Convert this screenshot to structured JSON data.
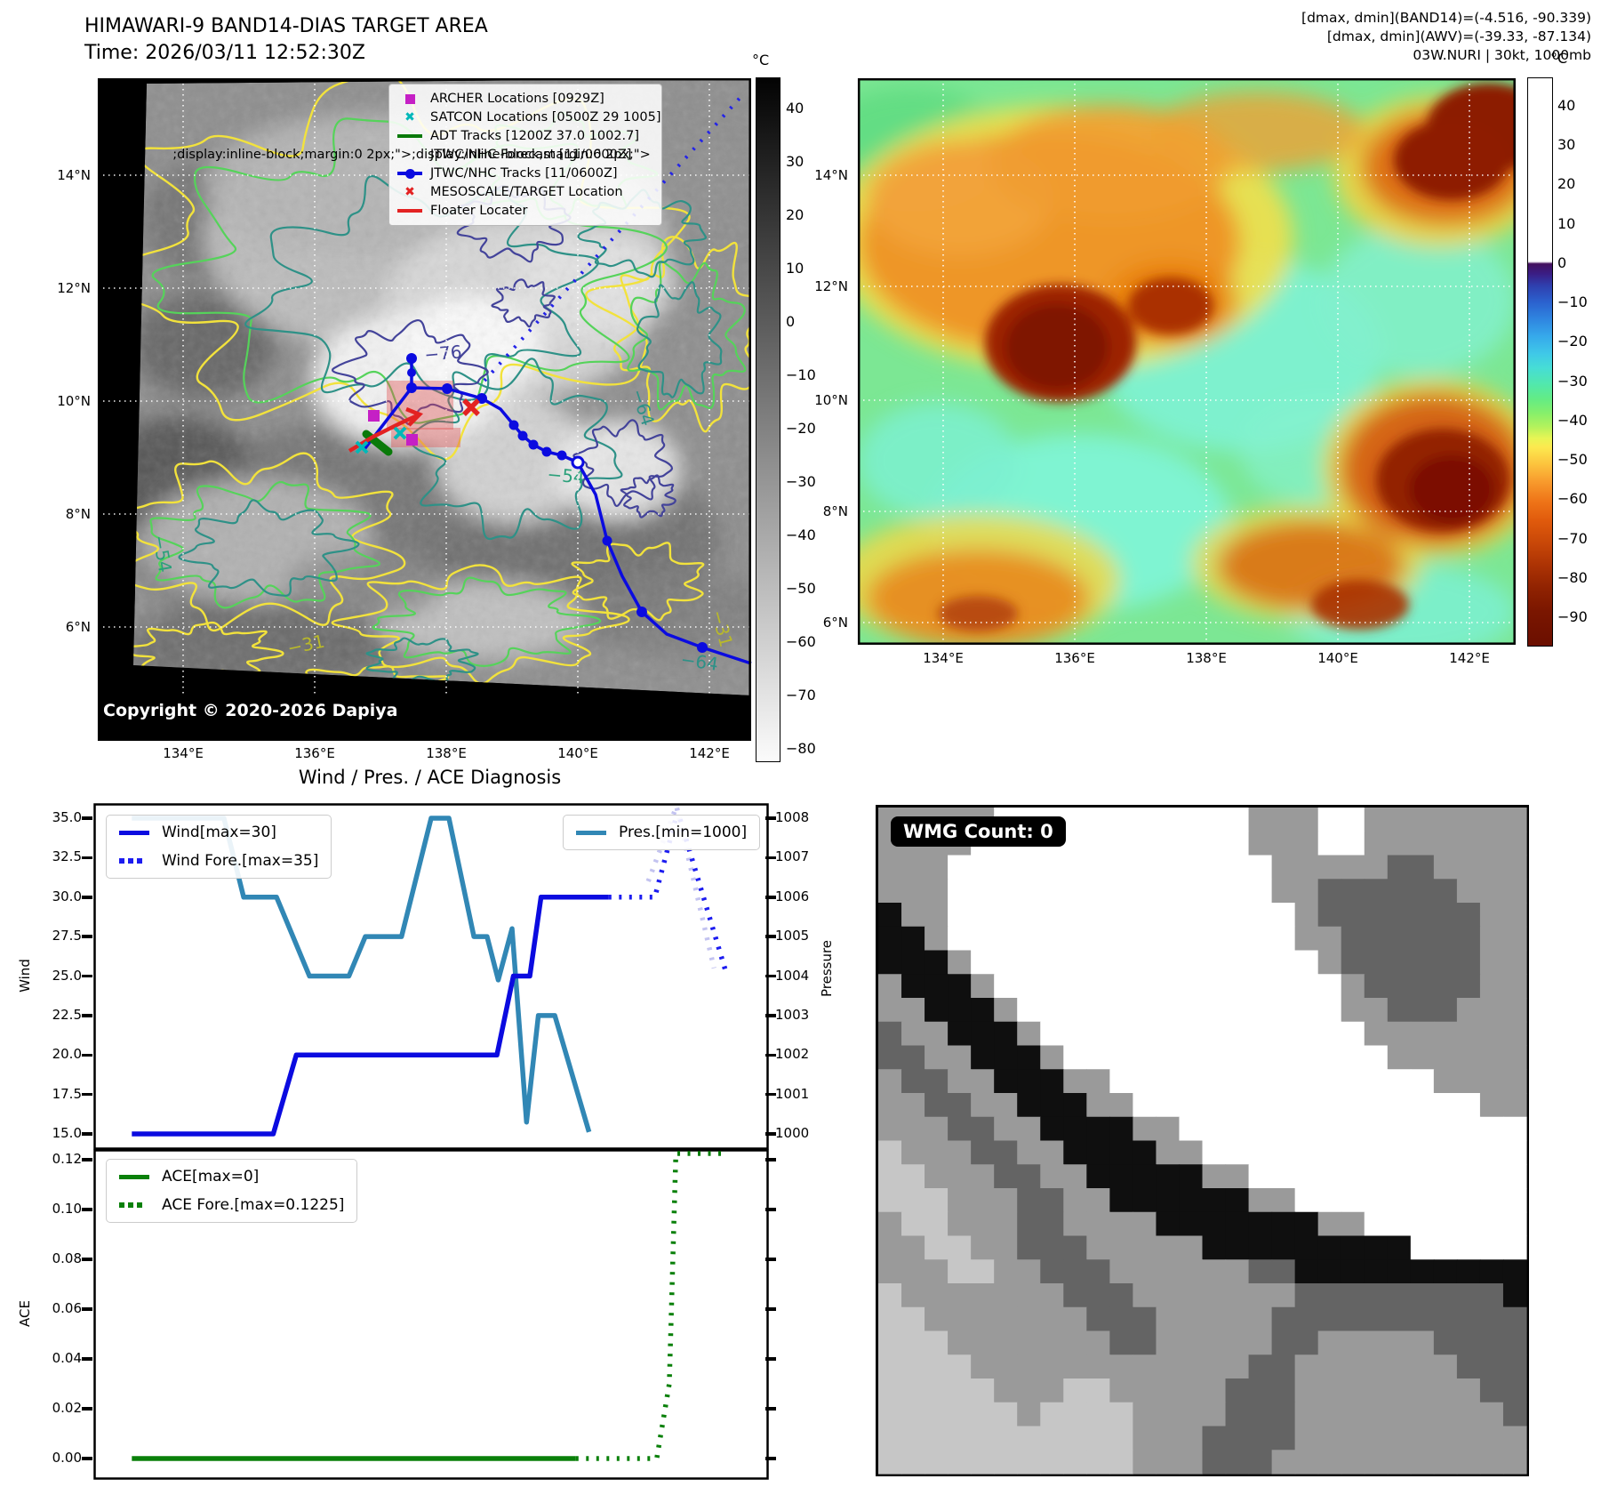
{
  "band14": {
    "title": "HIMAWARI-9 BAND14-DIAS TARGET AREA",
    "time": "Time: 2026/03/11 12:52:30Z",
    "copyright": "Copyright © 2020-2026 Dapiya",
    "legend": [
      {
        "marker": "square",
        "color": "#c520c5",
        "label": "ARCHER Locations [0929Z]"
      },
      {
        "marker": "cross",
        "color": "#00b8b8",
        "label": "SATCON Locations [0500Z 29 1005]"
      },
      {
        "marker": "line",
        "color": "#0a7a0a",
        "label": "ADT Tracks [1200Z 37.0 1002.7]"
      },
      {
        "marker": "dotted",
        "color": "#2323e8",
        "label": "JTWC/NHC Forecast [11/0600Z]"
      },
      {
        "marker": "line-dot",
        "color": "#0b0be0",
        "label": "JTWC/NHC Tracks [11/0600Z]"
      },
      {
        "marker": "cross",
        "color": "#e32222",
        "label": "MESOSCALE/TARGET Location"
      },
      {
        "marker": "line",
        "color": "#e32222",
        "label": "Floater Locater"
      }
    ],
    "x_ticks": [
      "134°E",
      "136°E",
      "138°E",
      "140°E",
      "142°E"
    ],
    "y_ticks": [
      "14°N",
      "12°N",
      "10°N",
      "8°N",
      "6°N"
    ],
    "colorbar_unit": "°C",
    "colorbar_ticks": [
      "40",
      "30",
      "20",
      "10",
      "0",
      "−10",
      "−20",
      "−30",
      "−40",
      "−50",
      "−60",
      "−70",
      "−80"
    ],
    "contour_labels": [
      "−76",
      "−64",
      "−54",
      "−31"
    ]
  },
  "awv": {
    "header_lines": [
      "[dmax, dmin](BAND14)=(-4.516, -90.339)",
      "[dmax, dmin](AWV)=(-39.33, -87.134)",
      "03W.NURI | 30kt, 1000mb"
    ],
    "x_ticks": [
      "134°E",
      "136°E",
      "138°E",
      "140°E",
      "142°E"
    ],
    "y_ticks": [
      "14°N",
      "12°N",
      "10°N",
      "8°N",
      "6°N"
    ],
    "colorbar_unit": "°C",
    "colorbar_ticks": [
      "40",
      "30",
      "20",
      "10",
      "0",
      "−10",
      "−20",
      "−30",
      "−40",
      "−50",
      "−60",
      "−70",
      "−80",
      "−90"
    ]
  },
  "diagnosis": {
    "title": "Wind / Pres. / ACE Diagnosis",
    "wind_label": "Wind",
    "pressure_label": "Pressure",
    "ace_label": "ACE"
  },
  "wmg": {
    "count_label": "WMG Count: 0",
    "palette": {
      "W": "#ffffff",
      "L": "#c6c6c6",
      "M": "#9a9a9a",
      "D": "#646464",
      "B": "#0f0f0f"
    },
    "grid": [
      "MMMMMWWWWWWWWWWWMMMWWMMMMMMM",
      "MMMMWWWWWWWWWWWWMMMWWMMMMMMM",
      "MMMWWWWWWWWWWWWWWMMMMMDDMMMM",
      "MMMWWWWWWWWWWWWWWMMDDDDDDMMM",
      "BMMWWWWWWWWWWWWWWWMDDDDDDDMM",
      "BBMWWWWWWWWWWWWWWWMMDDDDDDMM",
      "BBBMWWWWWWWWWWWWWWWMDDDDDDMM",
      "MBBBMWWWWWWWWWWWWWWWMDDDDDMM",
      "MMBBBMWWWWWWWWWWWWWWMMDDDMMM",
      "DMMBBBMWWWWWWWWWWWWWWMMMMMMM",
      "DDMMBBBMWWWWWWWWWWWWWWMMMMMM",
      "MDDMMBBBMMWWWWWWWWWWWWWWMMMM",
      "MMDDMMBBBMMWWWWWWWWWWWWWWWMM",
      "MMMDDMMBBBBMMWWWWWWWWWWWWWWW",
      "LMMMDDMMBBBBMMWWWWWWWWWWWWWW",
      "LLMMMDDMMBBBBBMMWWWWWWWWWWWW",
      "LLLMMMDDMMBBBBBBMMWWWWWWWWWW",
      "MLLMMMDDMMMMBBBBBBBMMWWWWWWW",
      "MMLLMMDDDMMMMMBBBBBBBBBWWWWW",
      "MMMLLMMDDDMMMMMMDDBBBBBBBBBB",
      "LMMMMMMMDDDMMMMMMMDDDDDDDDDB",
      "LLMMMMMMMDDDMMMMMDDDDDDDDDDD",
      "LLLMMMMMMMDDMMMMMDDMMMMMDDDD",
      "LLLLMMMMMMMMMMMMDDMMMMMMMDDD",
      "LLLLLMMMLLMMMMMDDDMMMMMMMMDD",
      "LLLLLLMLLLLMMMMDDDMMMMMMMMMD",
      "LLLLLLLLLLLMMMDDDDMMMMMMMMMM",
      "LLLLLLLLLLLMMMDDDMMMMMMMMMMM"
    ]
  },
  "chart_data": [
    {
      "type": "line",
      "title": "Wind / Pres. / ACE Diagnosis",
      "ylabel": "Wind",
      "y2label": "Pressure",
      "ylim": [
        14.0,
        36.0
      ],
      "y2lim": [
        999.5,
        1008.5
      ],
      "yticks": [
        "35.0",
        "32.5",
        "30.0",
        "27.5",
        "25.0",
        "22.5",
        "20.0",
        "17.5",
        "15.0"
      ],
      "y2ticks": [
        "1008",
        "1007",
        "1006",
        "1005",
        "1004",
        "1003",
        "1002",
        "1001",
        "1000"
      ],
      "grid": false,
      "legend_position": "upper left / upper right",
      "series": [
        {
          "name": "Wind[max=30]",
          "style": "solid",
          "color": "#0b0be0",
          "axis": "wind",
          "legend": "left",
          "points": [
            [
              0.045,
              15
            ],
            [
              0.26,
              15
            ],
            [
              0.295,
              20
            ],
            [
              0.6,
              20
            ],
            [
              0.625,
              25
            ],
            [
              0.65,
              25
            ],
            [
              0.667,
              30
            ],
            [
              0.77,
              30
            ]
          ]
        },
        {
          "name": "Wind Fore.[max=35]",
          "style": "dotted",
          "color": "#1c1cf0",
          "axis": "wind",
          "legend": "left",
          "points": [
            [
              0.77,
              30
            ],
            [
              0.84,
              30
            ],
            [
              0.872,
              35
            ],
            [
              0.878,
              35
            ],
            [
              0.95,
              25
            ]
          ]
        },
        {
          "name": "Pres.[min=1000]",
          "style": "solid",
          "color": "#3187b5",
          "axis": "pressure",
          "legend": "right",
          "points": [
            [
              0.045,
              1008
            ],
            [
              0.185,
              1008
            ],
            [
              0.215,
              1006
            ],
            [
              0.265,
              1006
            ],
            [
              0.315,
              1004
            ],
            [
              0.375,
              1004
            ],
            [
              0.4,
              1005
            ],
            [
              0.455,
              1005
            ],
            [
              0.5,
              1008
            ],
            [
              0.527,
              1008
            ],
            [
              0.565,
              1005
            ],
            [
              0.585,
              1005
            ],
            [
              0.602,
              1003.9
            ],
            [
              0.623,
              1005.2
            ],
            [
              0.645,
              1000.3
            ],
            [
              0.663,
              1003
            ],
            [
              0.688,
              1003
            ],
            [
              0.74,
              1000.05
            ]
          ]
        },
        {
          "name": "Pres. Fore.",
          "style": "dotted",
          "color": "#c3c3f0",
          "axis": "pressure",
          "legend": "none",
          "points": [
            [
              0.83,
              1006.4
            ],
            [
              0.873,
              1008.3
            ],
            [
              0.93,
              1004.2
            ]
          ]
        }
      ]
    },
    {
      "type": "line",
      "ylabel": "ACE",
      "ylim": [
        -0.004,
        0.128
      ],
      "yticks": [
        "0.12",
        "0.10",
        "0.08",
        "0.06",
        "0.04",
        "0.02",
        "0.00"
      ],
      "grid": false,
      "series": [
        {
          "name": "ACE[max=0]",
          "style": "solid",
          "color": "#0a800a",
          "legend": "left",
          "points": [
            [
              0.045,
              0
            ],
            [
              0.72,
              0
            ]
          ]
        },
        {
          "name": "ACE Fore.[max=0.1225]",
          "style": "dotted",
          "color": "#0a800a",
          "legend": "left",
          "points": [
            [
              0.72,
              0
            ],
            [
              0.843,
              0
            ],
            [
              0.862,
              0.03
            ],
            [
              0.872,
              0.1225
            ],
            [
              0.95,
              0.1225
            ]
          ]
        }
      ]
    }
  ]
}
